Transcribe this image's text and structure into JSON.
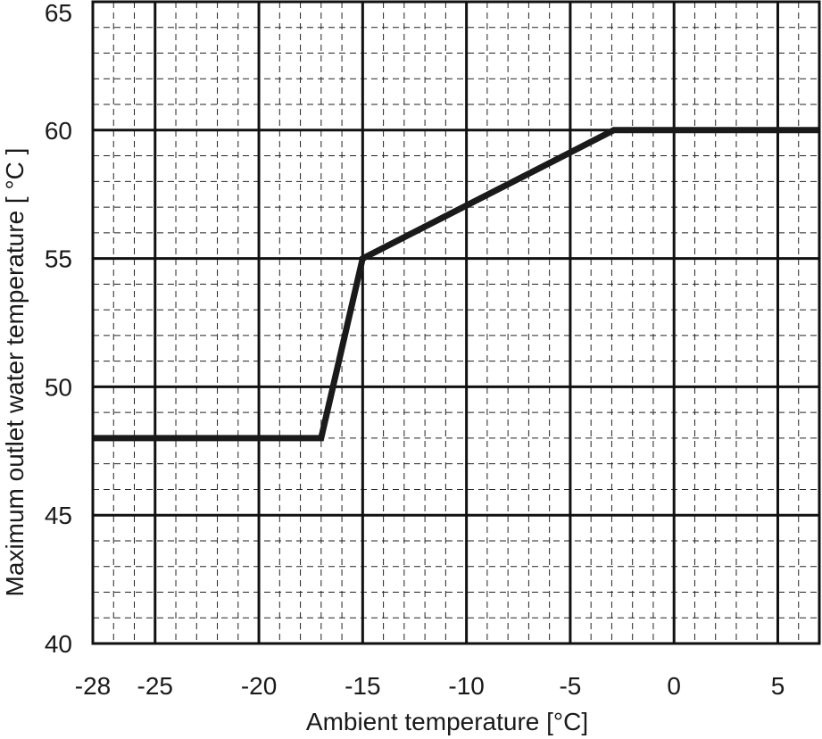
{
  "chart_data": {
    "type": "line",
    "title": "",
    "xlabel": "Ambient temperature [°C]",
    "ylabel": "Maximum outlet water temperature [ °C ]",
    "xlim": [
      -28,
      7
    ],
    "ylim": [
      40,
      65
    ],
    "x_ticks": [
      -28,
      -25,
      -20,
      -15,
      -10,
      -5,
      0,
      5
    ],
    "x_tick_labels": [
      "-28",
      "-25",
      "-20",
      "-15",
      "-10",
      "-5",
      "0",
      "5"
    ],
    "y_ticks": [
      40,
      45,
      50,
      55,
      60,
      65
    ],
    "y_tick_labels": [
      "40",
      "45",
      "50",
      "55",
      "60",
      "65"
    ],
    "x_major_grid": [
      -25,
      -20,
      -15,
      -10,
      -5,
      0,
      5
    ],
    "y_major_grid": [
      45,
      50,
      55,
      60
    ],
    "x_minor_step": 1,
    "y_minor_step": 1,
    "grid": true,
    "legend": "none",
    "series": [
      {
        "color": "#1a1a1a",
        "x": [
          -28,
          -17,
          -15,
          -2.9,
          7
        ],
        "y": [
          48,
          48,
          55,
          60,
          60
        ]
      }
    ]
  }
}
